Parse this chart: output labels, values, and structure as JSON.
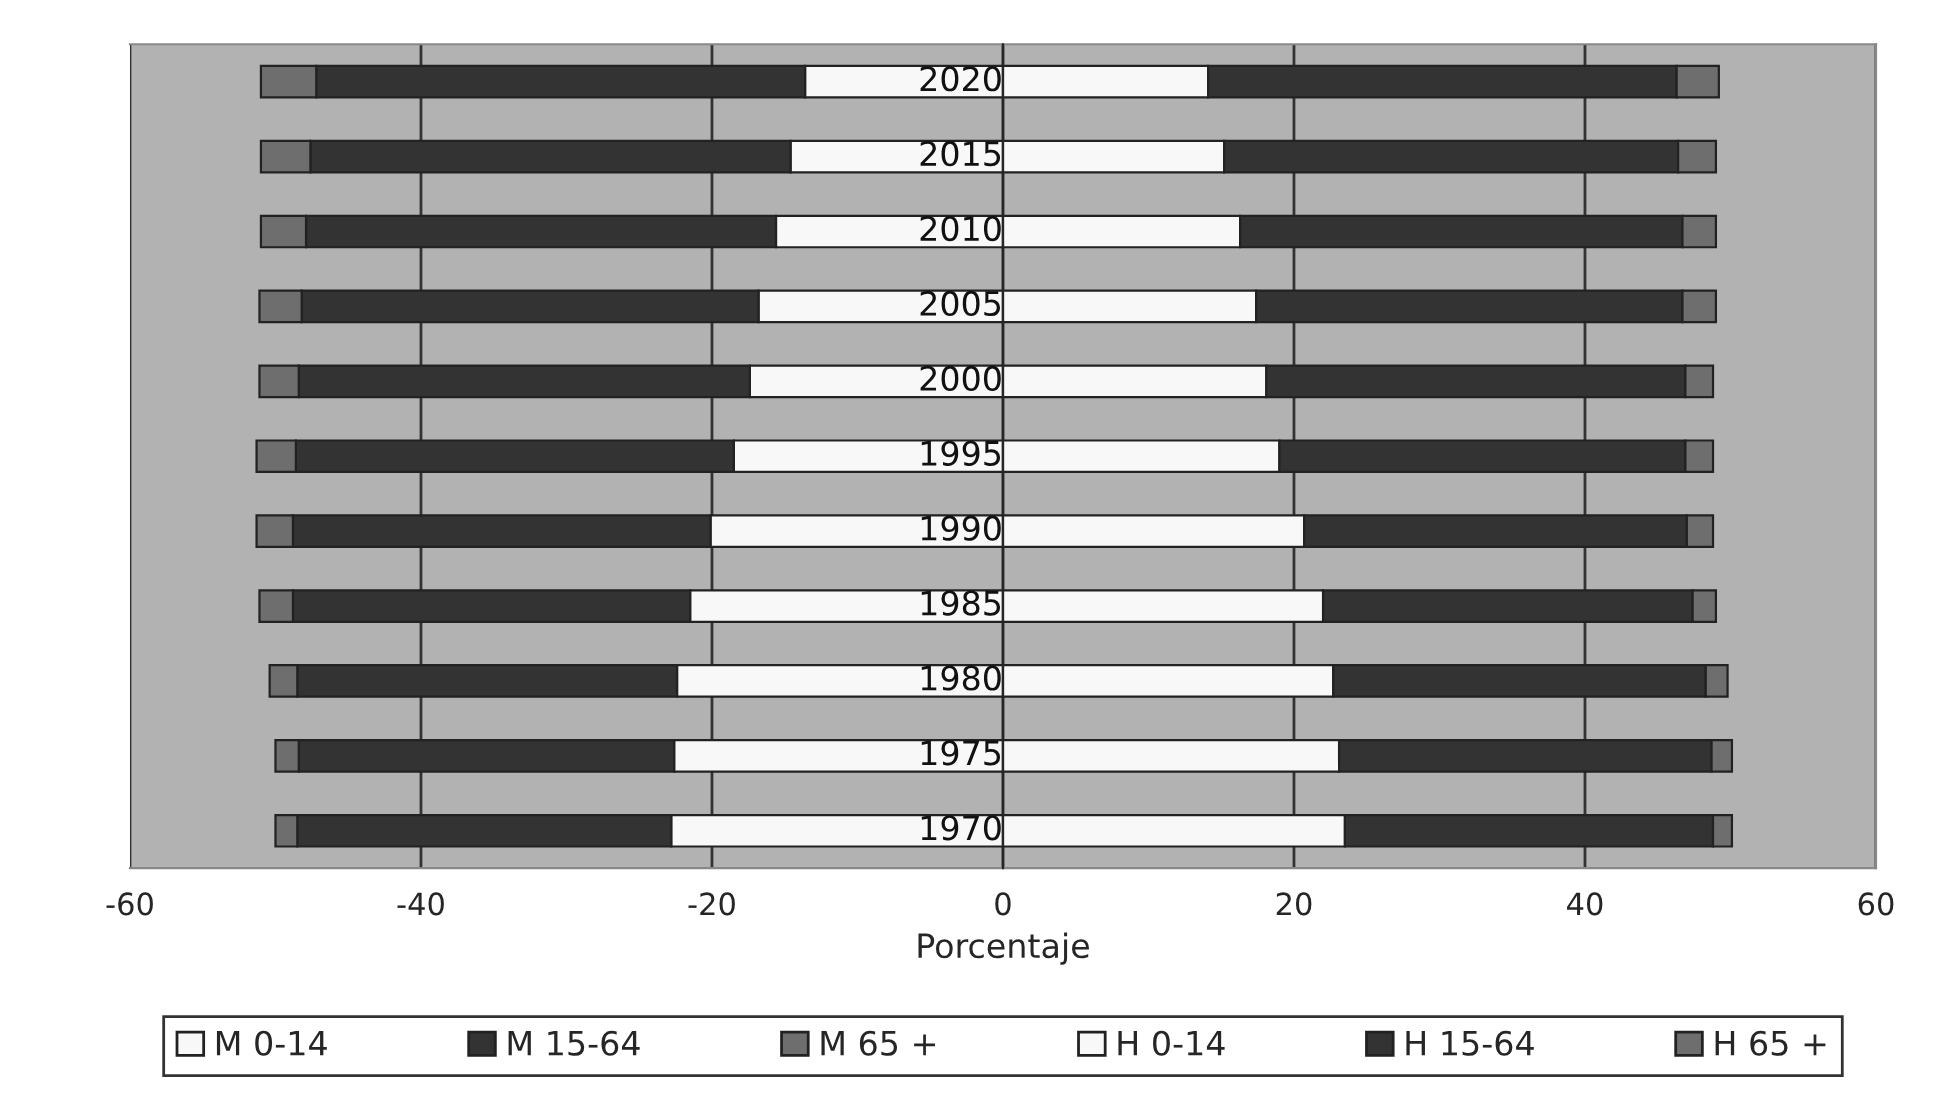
{
  "chart_data": {
    "type": "bar",
    "orientation": "horizontal",
    "stacked": true,
    "xlabel": "Porcentaje",
    "categories": [
      "2020",
      "2015",
      "2010",
      "2005",
      "2000",
      "1995",
      "1990",
      "1985",
      "1980",
      "1975",
      "1970"
    ],
    "series": [
      {
        "name": "M 0-14",
        "color": "#f8f8f8",
        "values": [
          -13.6,
          -14.6,
          -15.6,
          -16.8,
          -17.4,
          -18.5,
          -20.1,
          -21.5,
          -22.4,
          -22.6,
          -22.8
        ]
      },
      {
        "name": "M 15-64",
        "color": "#333333",
        "values": [
          -33.6,
          -33.0,
          -32.3,
          -31.4,
          -31.0,
          -30.1,
          -28.7,
          -27.3,
          -26.1,
          -25.8,
          -25.7
        ]
      },
      {
        "name": "M 65 +",
        "color": "#6e6e6e",
        "values": [
          -3.8,
          -3.4,
          -3.1,
          -2.9,
          -2.7,
          -2.7,
          -2.5,
          -2.3,
          -1.9,
          -1.6,
          -1.5
        ]
      },
      {
        "name": "H 0-14",
        "color": "#f8f8f8",
        "values": [
          14.1,
          15.2,
          16.3,
          17.4,
          18.1,
          19.0,
          20.7,
          22.0,
          22.7,
          23.1,
          23.5
        ]
      },
      {
        "name": "H 15-64",
        "color": "#333333",
        "values": [
          32.2,
          31.2,
          30.4,
          29.3,
          28.8,
          27.9,
          26.3,
          25.4,
          25.6,
          25.6,
          25.3
        ]
      },
      {
        "name": "H 65 +",
        "color": "#6e6e6e",
        "values": [
          2.9,
          2.6,
          2.3,
          2.3,
          1.9,
          1.9,
          1.8,
          1.6,
          1.5,
          1.4,
          1.3
        ]
      }
    ],
    "xlim": [
      -60,
      60
    ],
    "xticks": [
      -60,
      -40,
      -20,
      0,
      20,
      40,
      60
    ],
    "grid": "x",
    "legend": "bottom"
  }
}
